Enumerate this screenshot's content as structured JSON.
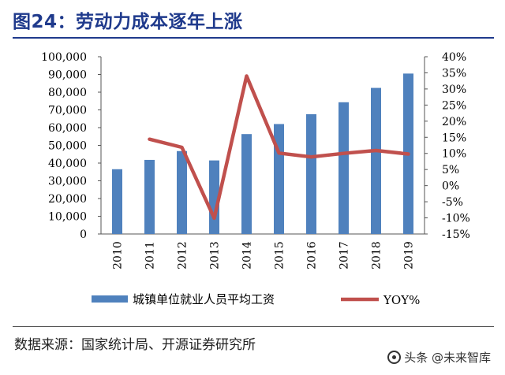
{
  "title": "图24：劳动力成本逐年上涨",
  "source": "数据来源：国家统计局、开源证券研究所",
  "watermark": "头条 @未来智库",
  "colors": {
    "bar": "#4f81bd",
    "line": "#c0504d",
    "title": "#1f3a8c"
  },
  "chart_data": {
    "type": "bar+line",
    "categories": [
      "2010",
      "2011",
      "2012",
      "2013",
      "2014",
      "2015",
      "2016",
      "2017",
      "2018",
      "2019"
    ],
    "series": [
      {
        "name": "城镇单位就业人员平均工资",
        "type": "bar",
        "axis": "left",
        "values": [
          36539,
          41799,
          46769,
          41500,
          56360,
          62029,
          67569,
          74318,
          82413,
          90501
        ]
      },
      {
        "name": "YOY%",
        "type": "line",
        "axis": "right",
        "values": [
          null,
          14.4,
          11.9,
          -10.1,
          34.0,
          10.1,
          8.9,
          10.0,
          10.9,
          9.8
        ]
      }
    ],
    "y_left": {
      "ylim": [
        0,
        100000
      ],
      "ticks": [
        "0",
        "10,000",
        "20,000",
        "30,000",
        "40,000",
        "50,000",
        "60,000",
        "70,000",
        "80,000",
        "90,000",
        "100,000"
      ]
    },
    "y_right": {
      "ylim": [
        -15,
        40
      ],
      "ticks": [
        "-15%",
        "-10%",
        "-5%",
        "0%",
        "5%",
        "10%",
        "15%",
        "20%",
        "25%",
        "30%",
        "35%",
        "40%"
      ]
    },
    "grid": false,
    "legend": "bottom"
  }
}
